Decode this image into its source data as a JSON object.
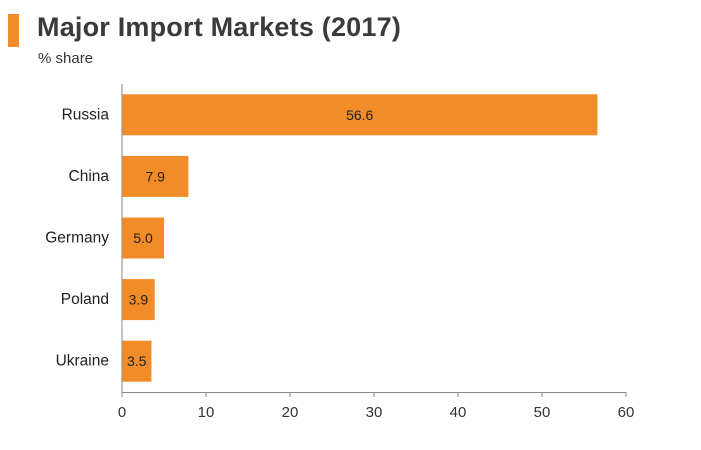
{
  "header": {
    "title": "Major Import Markets (2017)",
    "subtitle": "% share"
  },
  "colors": {
    "accent": "#f28c28",
    "bar": "#f28c28",
    "axis": "#8a8a8a"
  },
  "chart_data": {
    "type": "bar",
    "orientation": "horizontal",
    "title": "Major Import Markets (2017)",
    "subtitle": "% share",
    "categories": [
      "Russia",
      "China",
      "Germany",
      "Poland",
      "Ukraine"
    ],
    "values": [
      56.6,
      7.9,
      5.0,
      3.9,
      3.5
    ],
    "data_labels": [
      "56.6",
      "7.9",
      "5.0",
      "3.9",
      "3.5"
    ],
    "xlim": [
      0,
      60
    ],
    "xticks": [
      0,
      10,
      20,
      30,
      40,
      50,
      60
    ],
    "xlabel": "",
    "ylabel": "",
    "grid": false,
    "legend": "none"
  }
}
